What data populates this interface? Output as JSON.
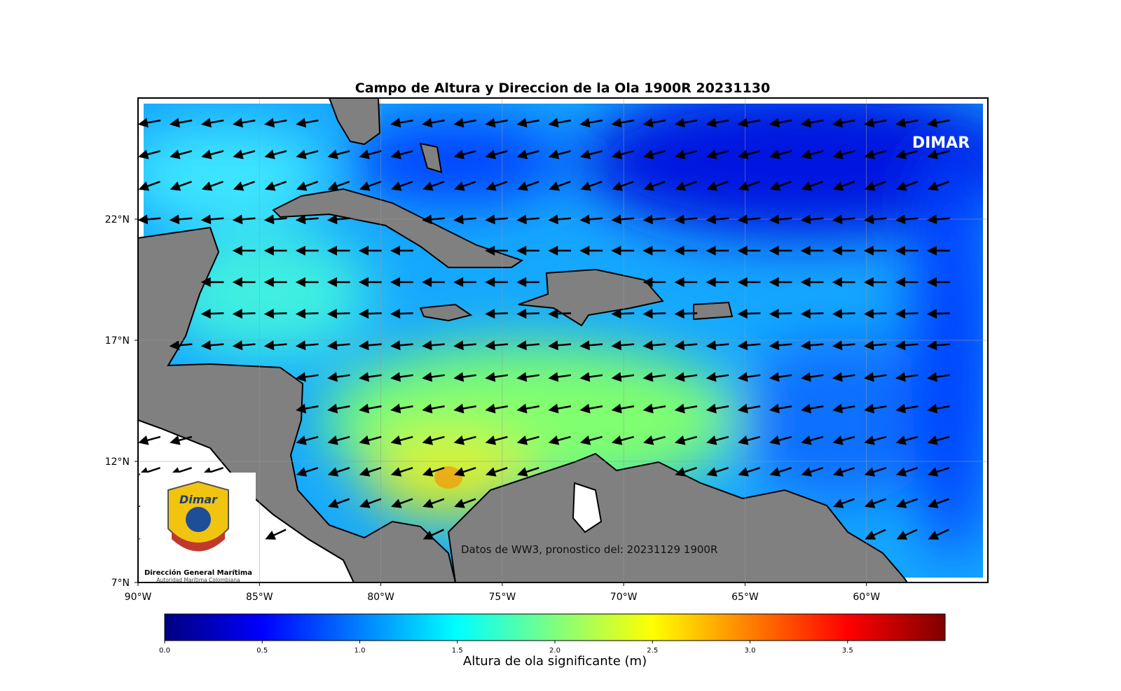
{
  "map": {
    "title": "Campo de Altura y Direccion de la Ola 1900R 20231130",
    "xlim": [
      -90,
      -55
    ],
    "ylim": [
      7,
      27
    ],
    "xticks": [
      {
        "value": -90,
        "label": "90°W"
      },
      {
        "value": -85,
        "label": "85°W"
      },
      {
        "value": -80,
        "label": "80°W"
      },
      {
        "value": -75,
        "label": "75°W"
      },
      {
        "value": -70,
        "label": "70°W"
      },
      {
        "value": -65,
        "label": "65°W"
      },
      {
        "value": -60,
        "label": "60°W"
      }
    ],
    "yticks": [
      {
        "value": 7,
        "label": "7°N"
      },
      {
        "value": 12,
        "label": "12°N"
      },
      {
        "value": 17,
        "label": "17°N"
      },
      {
        "value": 22,
        "label": "22°N"
      }
    ],
    "grid": true,
    "brand": "DIMAR",
    "annotation": "Datos de WW3, pronostico del: 20231129 1900R",
    "logo": {
      "mark": "Dimar",
      "name": "Dirección General Marítima",
      "subtitle": "Autoridad Marítima Colombiana"
    },
    "arrows": {
      "lats": [
        26,
        24.7,
        23.4,
        22,
        20.7,
        19.4,
        18.1,
        16.8,
        15.5,
        14.2,
        12.9,
        11.6,
        10.3,
        9
      ],
      "lons": [
        -89.5,
        -88.2,
        -86.9,
        -85.6,
        -84.3,
        -83,
        -81.7,
        -80.4,
        -79.1,
        -77.8,
        -76.5,
        -75.2,
        -73.9,
        -72.6,
        -71.3,
        -70,
        -68.7,
        -67.4,
        -66.1,
        -64.8,
        -63.5,
        -62.2,
        -60.9,
        -59.6,
        -58.3,
        -57
      ],
      "directions": [
        190,
        195,
        200,
        185,
        180,
        180,
        182,
        185,
        188,
        190,
        195,
        198,
        200,
        205
      ]
    },
    "colorbar": {
      "label": "Altura de ola significante (m)",
      "lim": [
        0,
        4
      ],
      "ticks": [
        {
          "value": 0,
          "label": "0.0"
        },
        {
          "value": 0.5,
          "label": "0.5"
        },
        {
          "value": 1,
          "label": "1.0"
        },
        {
          "value": 1.5,
          "label": "1.5"
        },
        {
          "value": 2,
          "label": "2.0"
        },
        {
          "value": 2.5,
          "label": "2.5"
        },
        {
          "value": 3,
          "label": "3.0"
        },
        {
          "value": 3.5,
          "label": "3.5"
        }
      ],
      "colormap": [
        "#00007f",
        "#0000ff",
        "#007fff",
        "#00ffff",
        "#7fff7f",
        "#ffff00",
        "#ff7f00",
        "#ff0000",
        "#7f0000"
      ]
    }
  }
}
